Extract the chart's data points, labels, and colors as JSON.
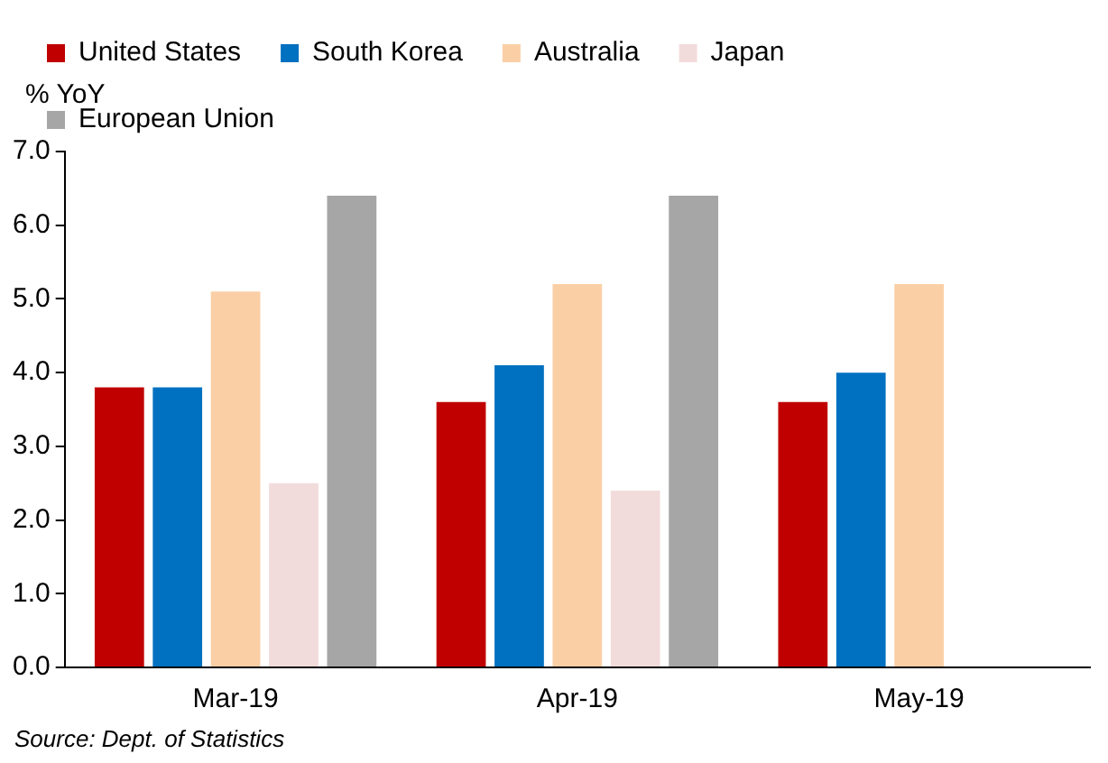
{
  "chart_data": {
    "type": "bar",
    "ylabel": "% YoY",
    "categories": [
      "Mar-19",
      "Apr-19",
      "May-19"
    ],
    "series": [
      {
        "name": "United States",
        "color": "#c00000",
        "values": [
          3.8,
          3.6,
          3.6
        ]
      },
      {
        "name": "South Korea",
        "color": "#0070c0",
        "values": [
          3.8,
          4.1,
          4.0
        ]
      },
      {
        "name": "Australia",
        "color": "#fbcfa6",
        "values": [
          5.1,
          5.2,
          5.2
        ]
      },
      {
        "name": "Japan",
        "color": "#f2dcdb",
        "values": [
          2.5,
          2.4,
          null
        ]
      },
      {
        "name": "European Union",
        "color": "#a6a6a6",
        "values": [
          6.4,
          6.4,
          null
        ]
      }
    ],
    "ylim": [
      0,
      7
    ],
    "yticks": [
      {
        "value": 0,
        "label": "0.0"
      },
      {
        "value": 1,
        "label": "1.0"
      },
      {
        "value": 2,
        "label": "2.0"
      },
      {
        "value": 3,
        "label": "3.0"
      },
      {
        "value": 4,
        "label": "4.0"
      },
      {
        "value": 5,
        "label": "5.0"
      },
      {
        "value": 6,
        "label": "6.0"
      },
      {
        "value": 7,
        "label": "7.0"
      }
    ],
    "grid": false,
    "legend": "top",
    "annotations": [
      "Source:  Dept. of Statistics"
    ]
  }
}
